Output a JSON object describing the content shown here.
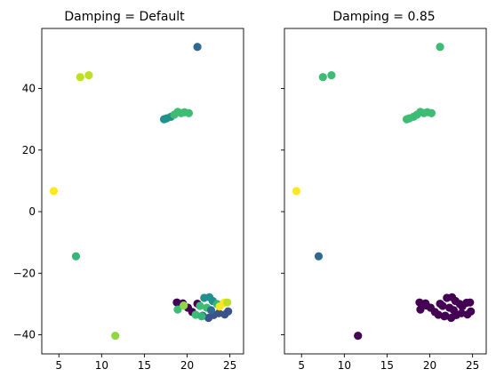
{
  "chart_data": [
    {
      "type": "scatter",
      "title": "Damping = Default",
      "xlabel": "",
      "ylabel": "",
      "xlim": [
        3.0,
        26.6
      ],
      "ylim": [
        -46.2,
        59.5
      ],
      "xticks": [
        5,
        10,
        15,
        20,
        25
      ],
      "yticks": [
        -40,
        -20,
        0,
        20,
        40
      ],
      "colors": {
        "c0": "#440154",
        "c1": "#3b528b",
        "c2": "#31688e",
        "c3": "#21918c",
        "c4": "#35b779",
        "c5": "#3dbc74",
        "c6": "#90d743",
        "c7": "#bddf26",
        "c8": "#fde725"
      },
      "points": [
        {
          "x": 21.2,
          "y": 53.5,
          "c": "c2"
        },
        {
          "x": 8.5,
          "y": 44.3,
          "c": "c7"
        },
        {
          "x": 7.5,
          "y": 43.7,
          "c": "c7"
        },
        {
          "x": 17.3,
          "y": 30.0,
          "c": "c3"
        },
        {
          "x": 17.6,
          "y": 30.3,
          "c": "c3"
        },
        {
          "x": 18.1,
          "y": 30.8,
          "c": "c3"
        },
        {
          "x": 18.5,
          "y": 31.5,
          "c": "c5"
        },
        {
          "x": 18.9,
          "y": 32.4,
          "c": "c5"
        },
        {
          "x": 19.3,
          "y": 32.0,
          "c": "c5"
        },
        {
          "x": 19.7,
          "y": 32.3,
          "c": "c5"
        },
        {
          "x": 20.2,
          "y": 32.0,
          "c": "c5"
        },
        {
          "x": 4.4,
          "y": 6.7,
          "c": "c8"
        },
        {
          "x": 7.0,
          "y": -14.5,
          "c": "c4"
        },
        {
          "x": 11.6,
          "y": -40.3,
          "c": "c6"
        },
        {
          "x": 18.8,
          "y": -29.5,
          "c": "c0"
        },
        {
          "x": 19.5,
          "y": -29.8,
          "c": "c0"
        },
        {
          "x": 20.1,
          "y": -31.2,
          "c": "c0"
        },
        {
          "x": 20.6,
          "y": -32.6,
          "c": "c0"
        },
        {
          "x": 21.2,
          "y": -29.9,
          "c": "c0"
        },
        {
          "x": 21.8,
          "y": -33.8,
          "c": "c1"
        },
        {
          "x": 22.5,
          "y": -34.5,
          "c": "c1"
        },
        {
          "x": 23.1,
          "y": -33.6,
          "c": "c1"
        },
        {
          "x": 23.7,
          "y": -33.0,
          "c": "c1"
        },
        {
          "x": 24.4,
          "y": -33.4,
          "c": "c1"
        },
        {
          "x": 24.8,
          "y": -32.4,
          "c": "c1"
        },
        {
          "x": 22.0,
          "y": -28.0,
          "c": "c3"
        },
        {
          "x": 22.6,
          "y": -27.8,
          "c": "c3"
        },
        {
          "x": 23.0,
          "y": -29.0,
          "c": "c3"
        },
        {
          "x": 21.5,
          "y": -30.6,
          "c": "c5"
        },
        {
          "x": 22.3,
          "y": -31.2,
          "c": "c5"
        },
        {
          "x": 18.9,
          "y": -31.8,
          "c": "c5"
        },
        {
          "x": 21.0,
          "y": -33.5,
          "c": "c5"
        },
        {
          "x": 21.7,
          "y": -34.0,
          "c": "c4"
        },
        {
          "x": 23.5,
          "y": -30.0,
          "c": "c4"
        },
        {
          "x": 23.8,
          "y": -30.8,
          "c": "c8"
        },
        {
          "x": 24.3,
          "y": -29.6,
          "c": "c8"
        },
        {
          "x": 24.7,
          "y": -29.5,
          "c": "c7"
        },
        {
          "x": 19.6,
          "y": -30.5,
          "c": "c6"
        },
        {
          "x": 22.8,
          "y": -32.0,
          "c": "c2"
        }
      ]
    },
    {
      "type": "scatter",
      "title": "Damping = 0.85",
      "xlabel": "",
      "ylabel": "",
      "xlim": [
        3.0,
        26.6
      ],
      "ylim": [
        -46.2,
        59.5
      ],
      "xticks": [
        5,
        10,
        15,
        20,
        25
      ],
      "yticks": [
        -40,
        -20,
        0,
        20,
        40
      ],
      "colors": {
        "c0": "#440154",
        "c2": "#31688e",
        "c5": "#3dbc74",
        "c8": "#fde725"
      },
      "points": [
        {
          "x": 21.2,
          "y": 53.5,
          "c": "c5"
        },
        {
          "x": 8.5,
          "y": 44.3,
          "c": "c5"
        },
        {
          "x": 7.5,
          "y": 43.7,
          "c": "c5"
        },
        {
          "x": 17.3,
          "y": 30.0,
          "c": "c5"
        },
        {
          "x": 17.6,
          "y": 30.3,
          "c": "c5"
        },
        {
          "x": 18.1,
          "y": 30.8,
          "c": "c5"
        },
        {
          "x": 18.5,
          "y": 31.5,
          "c": "c5"
        },
        {
          "x": 18.9,
          "y": 32.4,
          "c": "c5"
        },
        {
          "x": 19.3,
          "y": 32.0,
          "c": "c5"
        },
        {
          "x": 19.7,
          "y": 32.3,
          "c": "c5"
        },
        {
          "x": 20.2,
          "y": 32.0,
          "c": "c5"
        },
        {
          "x": 4.4,
          "y": 6.7,
          "c": "c8"
        },
        {
          "x": 7.0,
          "y": -14.5,
          "c": "c2"
        },
        {
          "x": 11.6,
          "y": -40.3,
          "c": "c0"
        },
        {
          "x": 18.8,
          "y": -29.5,
          "c": "c0"
        },
        {
          "x": 19.5,
          "y": -29.8,
          "c": "c0"
        },
        {
          "x": 20.1,
          "y": -31.2,
          "c": "c0"
        },
        {
          "x": 20.6,
          "y": -32.6,
          "c": "c0"
        },
        {
          "x": 21.2,
          "y": -29.9,
          "c": "c0"
        },
        {
          "x": 21.8,
          "y": -33.8,
          "c": "c0"
        },
        {
          "x": 22.5,
          "y": -34.5,
          "c": "c0"
        },
        {
          "x": 23.1,
          "y": -33.6,
          "c": "c0"
        },
        {
          "x": 23.7,
          "y": -33.0,
          "c": "c0"
        },
        {
          "x": 24.4,
          "y": -33.4,
          "c": "c0"
        },
        {
          "x": 24.8,
          "y": -32.4,
          "c": "c0"
        },
        {
          "x": 22.0,
          "y": -28.0,
          "c": "c0"
        },
        {
          "x": 22.6,
          "y": -27.8,
          "c": "c0"
        },
        {
          "x": 23.0,
          "y": -29.0,
          "c": "c0"
        },
        {
          "x": 21.5,
          "y": -30.6,
          "c": "c0"
        },
        {
          "x": 22.3,
          "y": -31.2,
          "c": "c0"
        },
        {
          "x": 18.9,
          "y": -31.8,
          "c": "c0"
        },
        {
          "x": 21.0,
          "y": -33.5,
          "c": "c0"
        },
        {
          "x": 21.7,
          "y": -34.0,
          "c": "c0"
        },
        {
          "x": 23.5,
          "y": -30.0,
          "c": "c0"
        },
        {
          "x": 23.8,
          "y": -30.8,
          "c": "c0"
        },
        {
          "x": 24.3,
          "y": -29.6,
          "c": "c0"
        },
        {
          "x": 24.7,
          "y": -29.5,
          "c": "c0"
        },
        {
          "x": 19.6,
          "y": -30.5,
          "c": "c0"
        },
        {
          "x": 22.8,
          "y": -32.0,
          "c": "c0"
        }
      ]
    }
  ]
}
